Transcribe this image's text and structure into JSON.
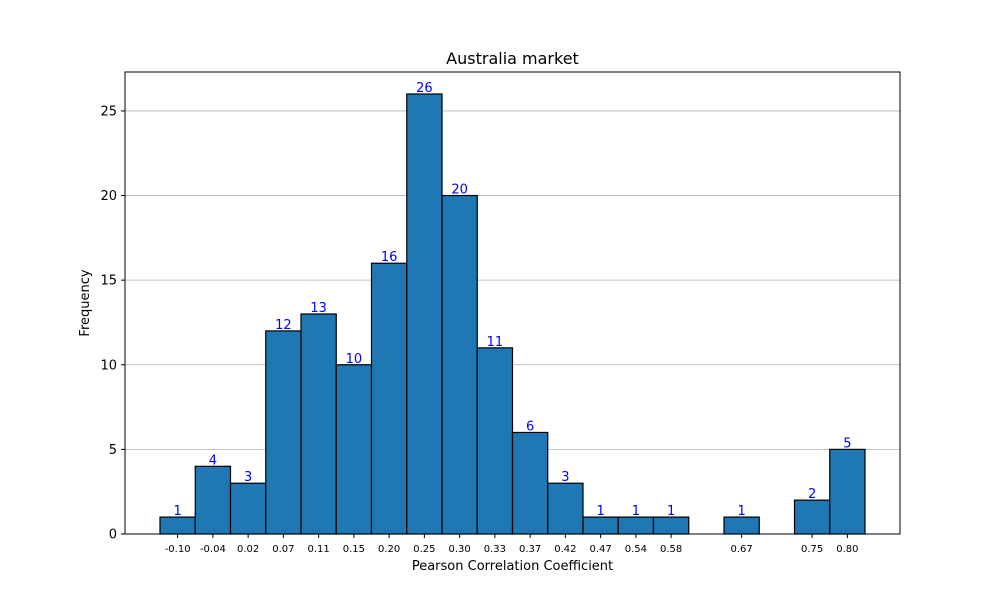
{
  "chart_data": {
    "type": "bar",
    "title": "Australia market",
    "xlabel": "Pearson Correlation Coefficient",
    "ylabel": "Frequency",
    "ylim": [
      0,
      27.3
    ],
    "yticks": [
      0,
      5,
      10,
      15,
      20,
      25
    ],
    "bar_color": "#1f77b4",
    "edge_color": "#000000",
    "label_color": "#0000ff",
    "grid": "y",
    "bins": [
      {
        "label": "-0.10",
        "value": 1
      },
      {
        "label": "-0.04",
        "value": 4
      },
      {
        "label": "0.02",
        "value": 3
      },
      {
        "label": "0.07",
        "value": 12
      },
      {
        "label": "0.11",
        "value": 13
      },
      {
        "label": "0.15",
        "value": 10
      },
      {
        "label": "0.20",
        "value": 16
      },
      {
        "label": "0.25",
        "value": 26
      },
      {
        "label": "0.30",
        "value": 20
      },
      {
        "label": "0.33",
        "value": 11
      },
      {
        "label": "0.37",
        "value": 6
      },
      {
        "label": "0.42",
        "value": 3
      },
      {
        "label": "0.47",
        "value": 1
      },
      {
        "label": "0.54",
        "value": 1
      },
      {
        "label": "0.58",
        "value": 1
      },
      {
        "label": "",
        "value": 0
      },
      {
        "label": "0.67",
        "value": 1
      },
      {
        "label": "",
        "value": 0
      },
      {
        "label": "0.75",
        "value": 2
      },
      {
        "label": "0.80",
        "value": 5
      }
    ]
  }
}
